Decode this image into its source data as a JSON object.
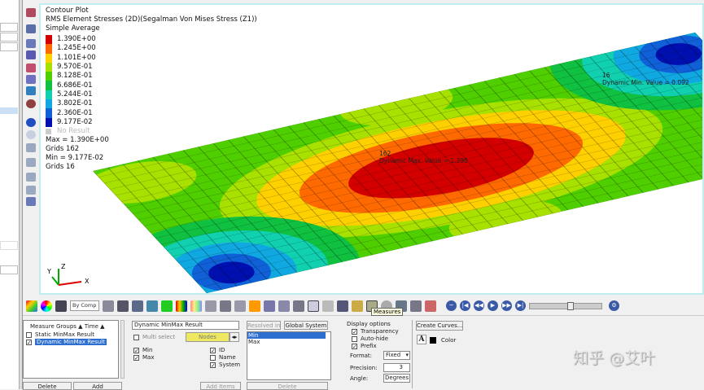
{
  "viewport": {
    "legend": {
      "title": "Contour Plot",
      "subtitle": "RMS Element Stresses (2D)(Segalman Von Mises Stress (Z1))",
      "averaging": "Simple Average",
      "levels": [
        {
          "label": "1.390E+00",
          "color": "#d40000"
        },
        {
          "label": "1.245E+00",
          "color": "#ff6a00"
        },
        {
          "label": "1.101E+00",
          "color": "#ffd000"
        },
        {
          "label": "9.570E-01",
          "color": "#a8e000"
        },
        {
          "label": "8.128E-01",
          "color": "#50cf00"
        },
        {
          "label": "6.686E-01",
          "color": "#10c040"
        },
        {
          "label": "5.244E-01",
          "color": "#10d0b0"
        },
        {
          "label": "3.802E-01",
          "color": "#10a8e0"
        },
        {
          "label": "2.360E-01",
          "color": "#1060d8"
        },
        {
          "label": "9.177E-02",
          "color": "#0010b0"
        }
      ],
      "no_result": "No Result",
      "max_line": "Max = 1.390E+00",
      "max_grid": "Grids 162",
      "min_line": "Min = 9.177E-02",
      "min_grid": "Grids 16"
    },
    "max_annotation": {
      "id": "162",
      "text": "Dynamic Max. Value = 1.390"
    },
    "min_annotation": {
      "id": "16",
      "text": "Dynamic Min. Value = 0.092"
    },
    "axes": {
      "x": "X",
      "y": "Y",
      "z": "Z"
    }
  },
  "toolbar": {
    "by_comp": "By Comp",
    "tooltip": "Measures"
  },
  "measure_groups": {
    "header": "Measure Groups",
    "time_header": "Time",
    "items": [
      {
        "label": "Static MinMax Result",
        "checked": false
      },
      {
        "label": "Dynamic MinMax Result",
        "checked": true,
        "selected": true
      }
    ],
    "delete": "Delete",
    "add": "Add"
  },
  "measure_def": {
    "type_select": "Dynamic MinMax Result",
    "multi_select": "Multi select",
    "entity": "Nodes",
    "min": "Min",
    "max": "Max",
    "id": "ID",
    "name": "Name",
    "system": "System",
    "add_items": "Add Items"
  },
  "resolved": {
    "resolved_in": "Resolved in...",
    "system": "Global System",
    "items": [
      "Min",
      "Max"
    ],
    "delete": "Delete"
  },
  "display_options": {
    "title": "Display options",
    "transparency": "Transparency",
    "auto_hide": "Auto-hide",
    "prefix": "Prefix",
    "format_label": "Format:",
    "format_value": "Fixed",
    "precision_label": "Precision:",
    "precision_value": "3",
    "angle_label": "Angle:",
    "angle_value": "Degrees"
  },
  "curves": {
    "create_curves": "Create Curves...",
    "font_glyph": "A",
    "color_label": "Color"
  },
  "watermark": "知乎 @艾叶"
}
